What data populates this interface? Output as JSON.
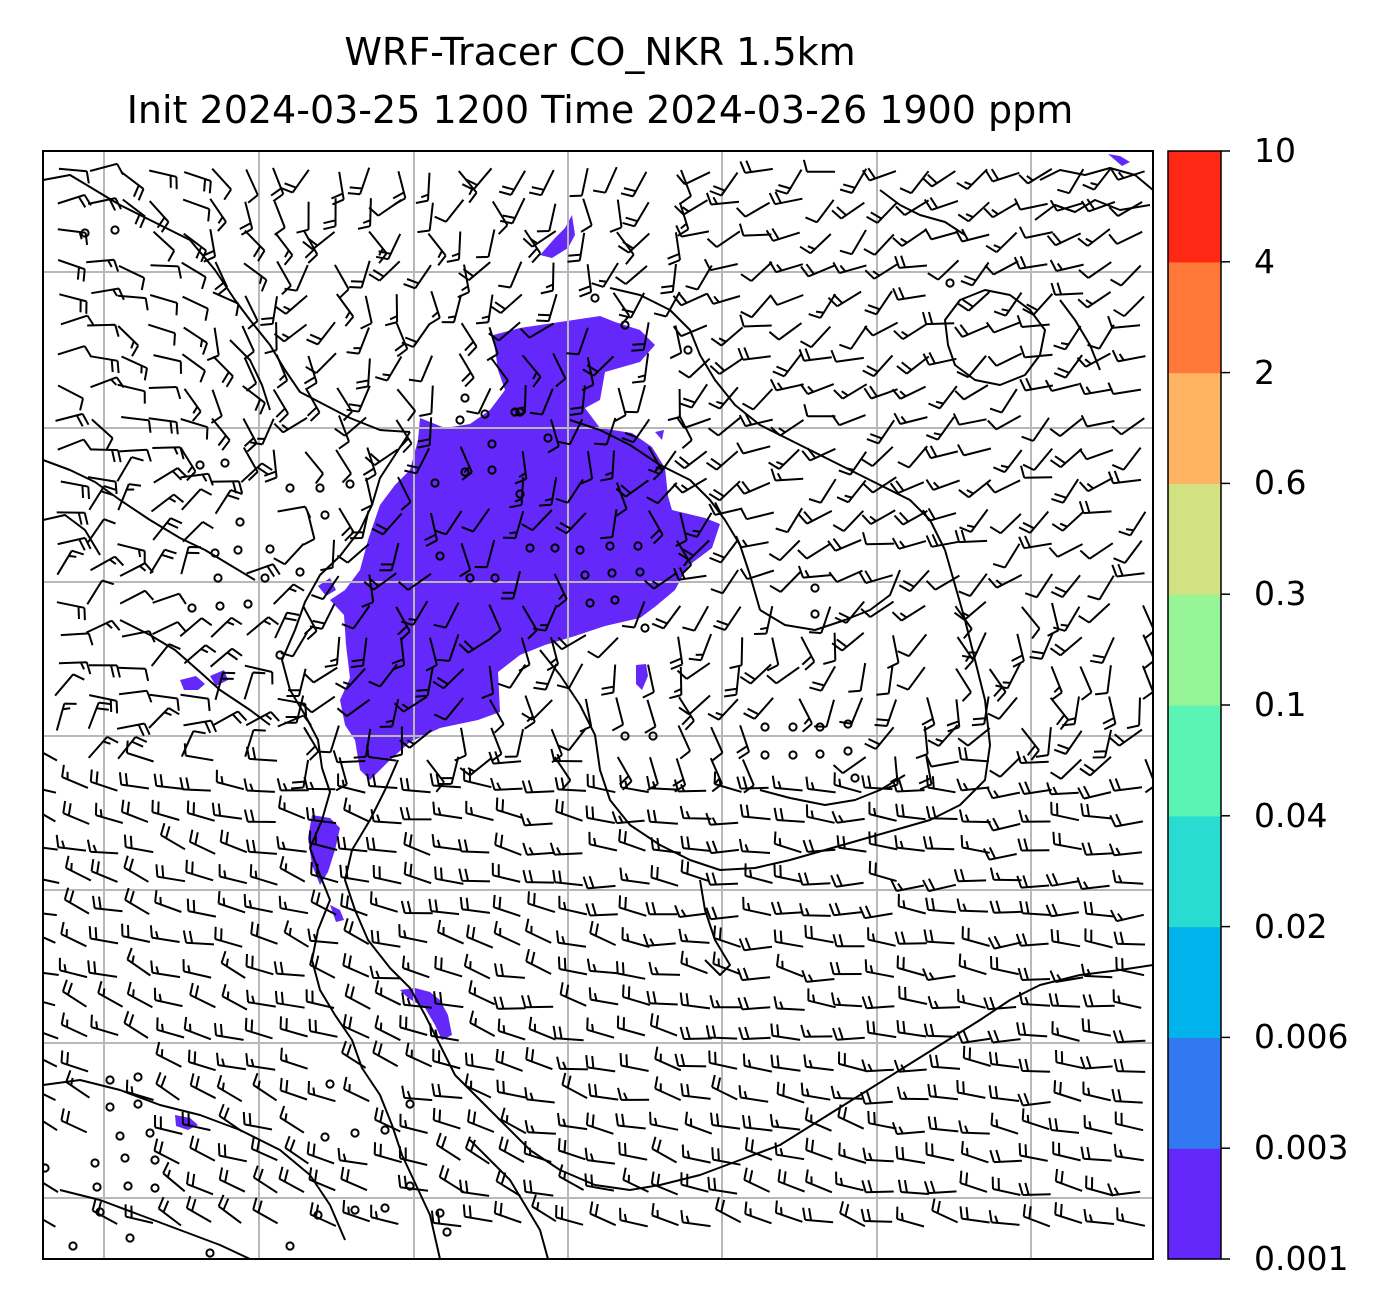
{
  "title_line1": "WRF-Tracer CO_NKR 1.5km",
  "title_line2": "Init 2024-03-25 1200 Time 2024-03-26 1900 ppm",
  "colorbar": {
    "levels": [
      "0.001",
      "0.003",
      "0.006",
      "0.02",
      "0.04",
      "0.1",
      "0.3",
      "0.6",
      "2",
      "4",
      "10"
    ],
    "colors": [
      "#6428fa",
      "#3278f0",
      "#00b4eb",
      "#28dcd2",
      "#5af5b4",
      "#96f596",
      "#d2e182",
      "#ffb464",
      "#ff7837",
      "#ff2814"
    ]
  },
  "plume": {
    "fill_color": "#6428fa",
    "tracer_range_ppm": "0.001-0.003"
  },
  "map": {
    "grid": true,
    "wind_barbs": true,
    "coastlines": true
  }
}
